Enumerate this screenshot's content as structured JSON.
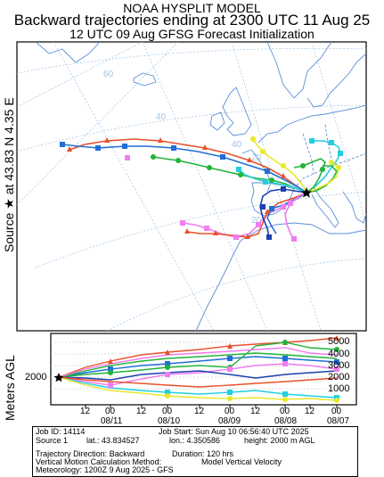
{
  "header": {
    "line1": "NOAA HYSPLIT MODEL",
    "line2": "Backward trajectories ending at 2300 UTC 11 Aug 25",
    "line3": "12 UTC 09 Aug    GFSG  Forecast Initialization"
  },
  "map": {
    "source_axis_label": "Source ★ at   43.83 N   4.35 E",
    "lat_labels": [
      "60",
      "40",
      "20",
      "20",
      "20",
      "20"
    ],
    "lon_labels": [
      "40",
      "20",
      "20"
    ]
  },
  "height_panel": {
    "ylabel": "Meters AGL",
    "source_height_label": "2000",
    "y_ticks": [
      "5000",
      "4000",
      "3000",
      "2000",
      "1000"
    ],
    "x_hour_labels": [
      "12",
      "00",
      "12",
      "00",
      "12",
      "00",
      "12",
      "00",
      "12",
      "00"
    ],
    "x_date_labels": [
      "08/11",
      "08/10",
      "08/09",
      "08/08",
      "08/07"
    ]
  },
  "footer": {
    "job_id": "Job ID: 14114",
    "job_start": "Job Start: Sun Aug 10 06:56:40 UTC 2025",
    "source": "Source 1",
    "lat": "lat.: 43.834527",
    "lon": "lon.: 4.350586",
    "height": "height: 2000 m AGL",
    "direction": "Trajectory Direction: Backward",
    "duration": "Duration: 120 hrs",
    "vertical": "Vertical Motion Calculation Method:",
    "vertical_value": "Model Vertical Velocity",
    "meteorology": "Meteorology: 1200Z 9 Aug 2025 - GFS"
  },
  "colors": {
    "red": "#e8502a",
    "blue": "#1f6fd6",
    "green": "#22b33a",
    "cyan": "#22cfe0",
    "magenta": "#f07cf0",
    "yellow": "#e8e82a",
    "darkblue": "#1a3fb0",
    "map_lines": "#5a8fd8",
    "grid": "#9cc3e6"
  }
}
